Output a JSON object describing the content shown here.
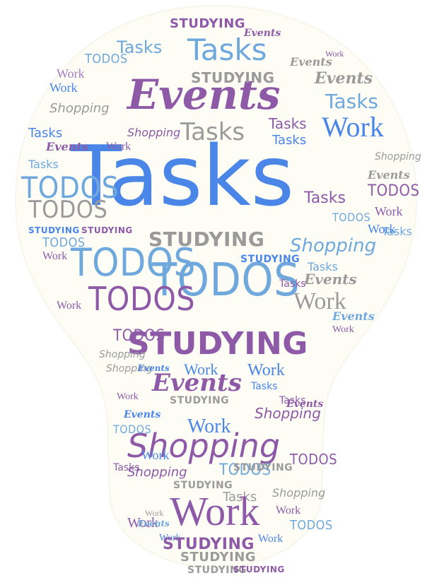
{
  "colors": {
    "blue": "#4a86e8",
    "light_blue": "#6fa8dc",
    "purple": "#8e5aa8",
    "light_purple": "#a77dc2",
    "gray": "#9a9a9a",
    "bulb_fill": "#fdfdf6",
    "background": "#ffffff"
  },
  "shape": "lightbulb",
  "words": {
    "tasks": "Tasks",
    "events": "Events",
    "todos": "TODOS",
    "work": "Work",
    "studying": "STUDYING",
    "shopping": "Shopping"
  }
}
